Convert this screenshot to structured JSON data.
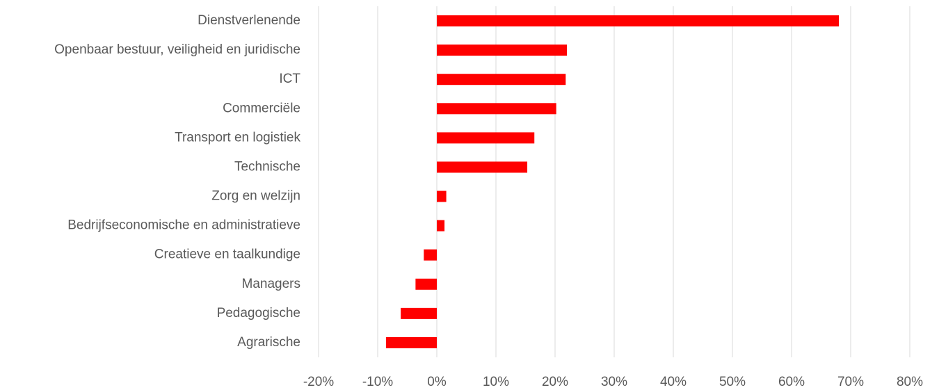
{
  "chart_data": {
    "type": "hbar",
    "categories": [
      "Dienstverlenende",
      "Openbaar bestuur, veiligheid en juridische",
      "ICT",
      "Commerciële",
      "Transport en logistiek",
      "Technische",
      "Zorg en welzijn",
      "Bedrijfseconomische en administratieve",
      "Creatieve en taalkundige",
      "Managers",
      "Pedagogische",
      "Agrarische"
    ],
    "values": [
      68,
      22,
      21.8,
      20.2,
      16.5,
      15.3,
      1.6,
      1.3,
      -2.2,
      -3.6,
      -6.1,
      -8.6
    ],
    "color": "#ff0000",
    "xlim": [
      -20,
      80
    ],
    "xticks": [
      {
        "value": -20,
        "label": "-20%"
      },
      {
        "value": -10,
        "label": "-10%"
      },
      {
        "value": 0,
        "label": "0%"
      },
      {
        "value": 10,
        "label": "10%"
      },
      {
        "value": 20,
        "label": "20%"
      },
      {
        "value": 30,
        "label": "30%"
      },
      {
        "value": 40,
        "label": "40%"
      },
      {
        "value": 50,
        "label": "50%"
      },
      {
        "value": 60,
        "label": "60%"
      },
      {
        "value": 70,
        "label": "70%"
      },
      {
        "value": 80,
        "label": "80%"
      }
    ],
    "grid": true
  }
}
